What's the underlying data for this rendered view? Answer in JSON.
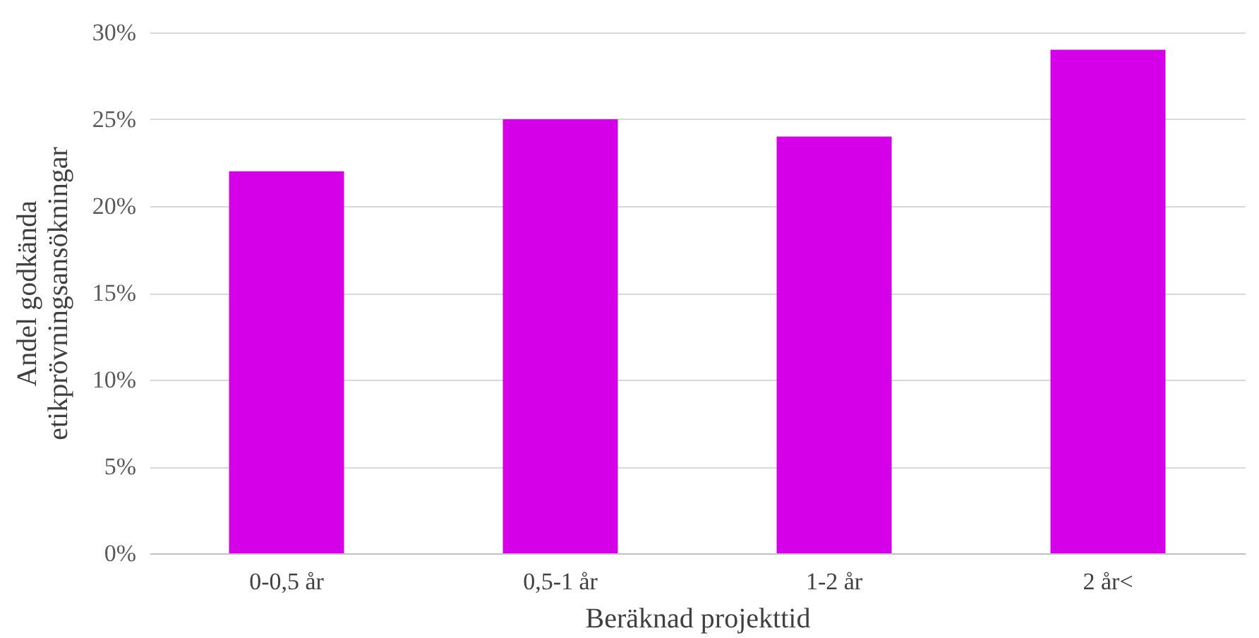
{
  "chart_data": {
    "type": "bar",
    "xlabel": "Beräknad projekttid",
    "ylabel": "Andel godkända etikprövningsansökningar",
    "categories": [
      "0-0,5 år",
      "0,5-1 år",
      "1-2 år",
      "2 år<"
    ],
    "values": [
      22,
      25,
      24,
      29
    ],
    "color": "#d600e8",
    "ylim": [
      0,
      30
    ],
    "yticks": [
      {
        "value": 0,
        "label": "0%"
      },
      {
        "value": 5,
        "label": "5%"
      },
      {
        "value": 10,
        "label": "10%"
      },
      {
        "value": 15,
        "label": "15%"
      },
      {
        "value": 20,
        "label": "20%"
      },
      {
        "value": 25,
        "label": "25%"
      },
      {
        "value": 30,
        "label": "30%"
      }
    ],
    "grid": "y"
  }
}
